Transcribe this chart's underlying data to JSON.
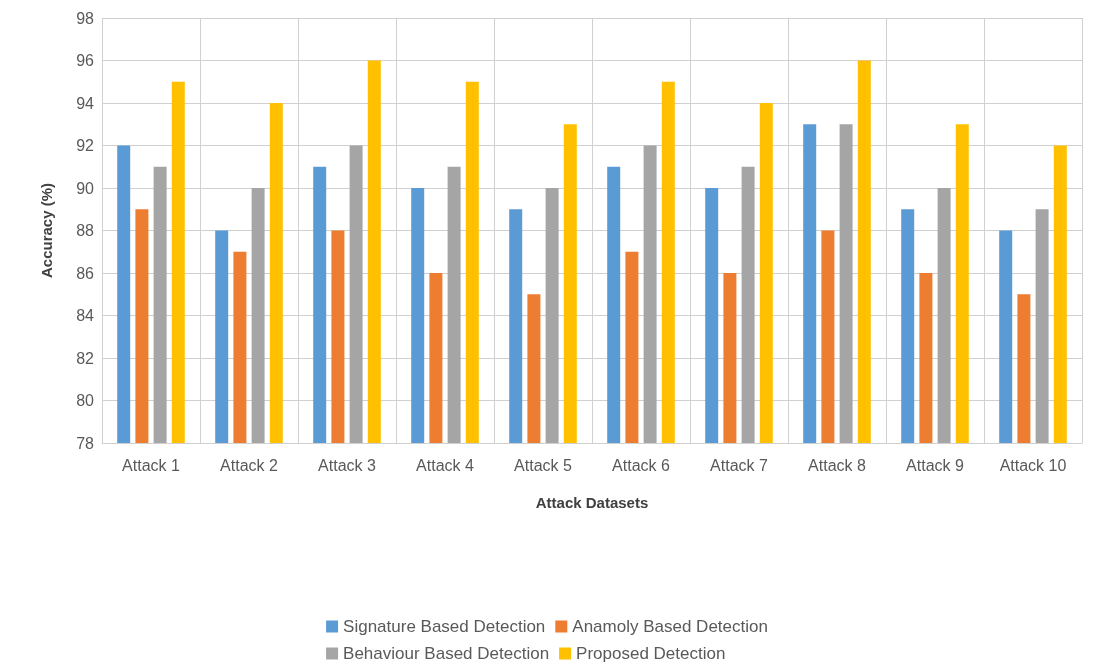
{
  "chart_data": {
    "type": "bar",
    "xlabel": "Attack Datasets",
    "ylabel": "Accuracy (%)",
    "categories": [
      "Attack 1",
      "Attack 2",
      "Attack 3",
      "Attack 4",
      "Attack 5",
      "Attack 6",
      "Attack 7",
      "Attack 8",
      "Attack 9",
      "Attack 10"
    ],
    "series": [
      {
        "name": "Signature Based Detection",
        "color": "#5b9bd5",
        "values": [
          92,
          88,
          91,
          90,
          89,
          91,
          90,
          93,
          89,
          88
        ]
      },
      {
        "name": "Anamoly Based Detection",
        "color": "#ed7d31",
        "values": [
          89,
          87,
          88,
          86,
          85,
          87,
          86,
          88,
          86,
          85
        ]
      },
      {
        "name": "Behaviour Based Detection",
        "color": "#a5a5a5",
        "values": [
          91,
          90,
          92,
          91,
          90,
          92,
          91,
          93,
          90,
          89
        ]
      },
      {
        "name": "Proposed Detection",
        "color": "#ffc000",
        "values": [
          95,
          94,
          96,
          95,
          93,
          95,
          94,
          96,
          93,
          92
        ]
      }
    ],
    "ylim": [
      78,
      98
    ],
    "yticks": [
      78,
      80,
      82,
      84,
      86,
      88,
      90,
      92,
      94,
      96,
      98
    ],
    "grid": true,
    "legend": "bottom"
  }
}
